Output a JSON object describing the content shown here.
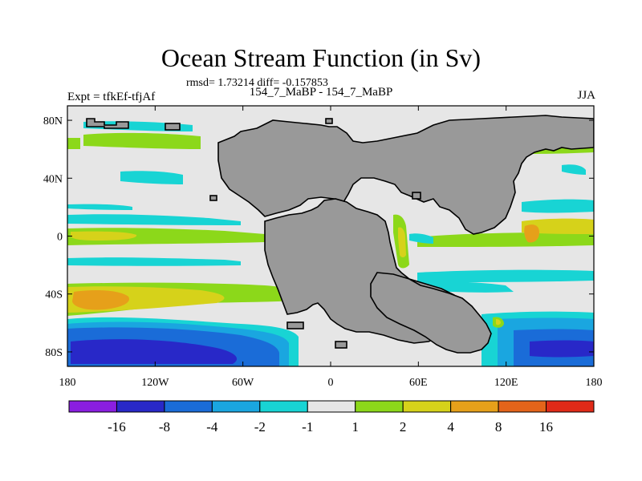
{
  "title": "Ocean Stream Function (in Sv)",
  "stats": "rmsd= 1.73214 diff= -0.157853",
  "expt_label": "Expt = tfkEf-tfjAf",
  "center_label": "154_7_MaBP - 154_7_MaBP",
  "season": "JJA",
  "lat_ticks": [
    "80N",
    "40N",
    "0",
    "40S",
    "80S"
  ],
  "lat_values": [
    80,
    40,
    0,
    -40,
    -80
  ],
  "lon_ticks": [
    "180",
    "120W",
    "60W",
    "0",
    "60E",
    "120E",
    "180"
  ],
  "lon_values": [
    -180,
    -120,
    -60,
    0,
    60,
    120,
    180
  ],
  "colorbar": {
    "labels": [
      "-16",
      "-8",
      "-4",
      "-2",
      "-1",
      "1",
      "2",
      "4",
      "8",
      "16"
    ],
    "colors": [
      "#8a1ee0",
      "#2828c8",
      "#1a6cd8",
      "#1aa6e0",
      "#18d4d4",
      "#e6e6e6",
      "#8cd81a",
      "#d6d21a",
      "#e6a01a",
      "#e4641a",
      "#e02a18"
    ]
  },
  "palette": {
    "ocean_neutral": "#e6e6e6",
    "land": "#999999",
    "coast": "#000000"
  }
}
